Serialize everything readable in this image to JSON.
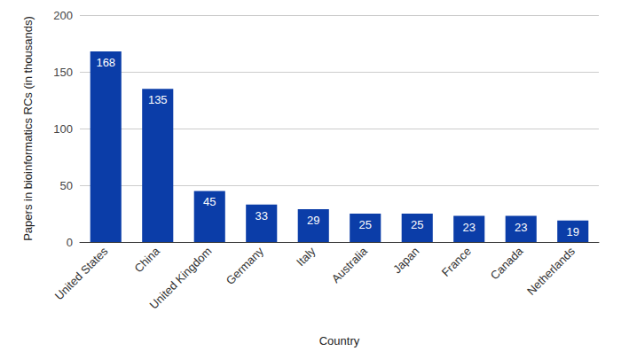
{
  "chart_data": {
    "type": "bar",
    "x_label": "Country",
    "y_label": "Papers in bioinformatics RCs (in thousands)",
    "categories": [
      "United States",
      "China",
      "United Kingdom",
      "Germany",
      "Italy",
      "Australia",
      "Japan",
      "France",
      "Canada",
      "Netherlands"
    ],
    "values": [
      168,
      135,
      45,
      33,
      29,
      25,
      25,
      23,
      23,
      19
    ],
    "color": "#0b3da8",
    "ylim": [
      0,
      200
    ],
    "yticks": [
      0,
      50,
      100,
      150,
      200
    ],
    "grid": true,
    "data_labels": true
  }
}
